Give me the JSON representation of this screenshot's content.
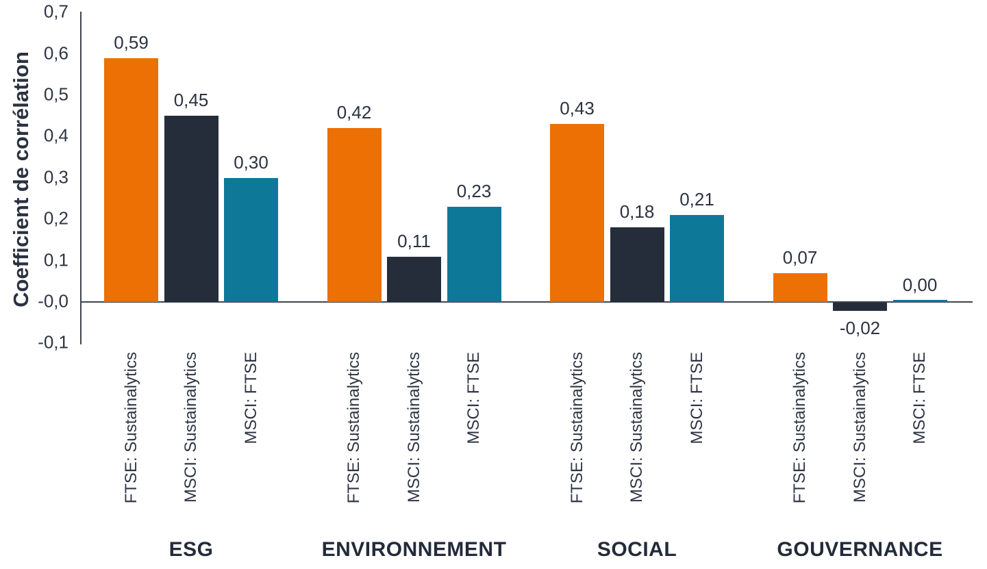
{
  "chart_data": {
    "type": "bar",
    "title": "",
    "ylabel": "Coefficient de corrélation",
    "xlabel": "",
    "ylim": [
      -0.1,
      0.7
    ],
    "grid": false,
    "legend_position": "none",
    "decimal_separator": ",",
    "yticks": [
      {
        "label": "0,7",
        "value": 0.7
      },
      {
        "label": "0,6",
        "value": 0.6
      },
      {
        "label": "0,5",
        "value": 0.5
      },
      {
        "label": "0,4",
        "value": 0.4
      },
      {
        "label": "0,3",
        "value": 0.3
      },
      {
        "label": "0,2",
        "value": 0.2
      },
      {
        "label": "0,1",
        "value": 0.1
      },
      {
        "label": "-0,0",
        "value": 0.0
      },
      {
        "label": "-0,1",
        "value": -0.1
      }
    ],
    "categories": [
      "ESG",
      "ENVIRONNEMENT",
      "SOCIAL",
      "GOUVERNANCE"
    ],
    "series": [
      {
        "name": "FTSE: Sustainalytics",
        "color": "#ec7004",
        "values": [
          0.59,
          0.42,
          0.43,
          0.07
        ]
      },
      {
        "name": "MSCI: Sustainalytics",
        "color": "#262d3a",
        "values": [
          0.45,
          0.11,
          0.18,
          -0.02
        ]
      },
      {
        "name": "MSCI: FTSE",
        "color": "#0e7899",
        "values": [
          0.3,
          0.23,
          0.21,
          0.0
        ]
      }
    ],
    "value_labels": [
      [
        "0,59",
        "0,45",
        "0,30"
      ],
      [
        "0,42",
        "0,11",
        "0,23"
      ],
      [
        "0,43",
        "0,18",
        "0,21"
      ],
      [
        "0,07",
        "-0,02",
        "0,00"
      ]
    ]
  },
  "colors": {
    "text": "#2e3543",
    "value_label_text": "#2b3240",
    "group_label_text": "#232b3a",
    "axis": "#3f4550"
  }
}
